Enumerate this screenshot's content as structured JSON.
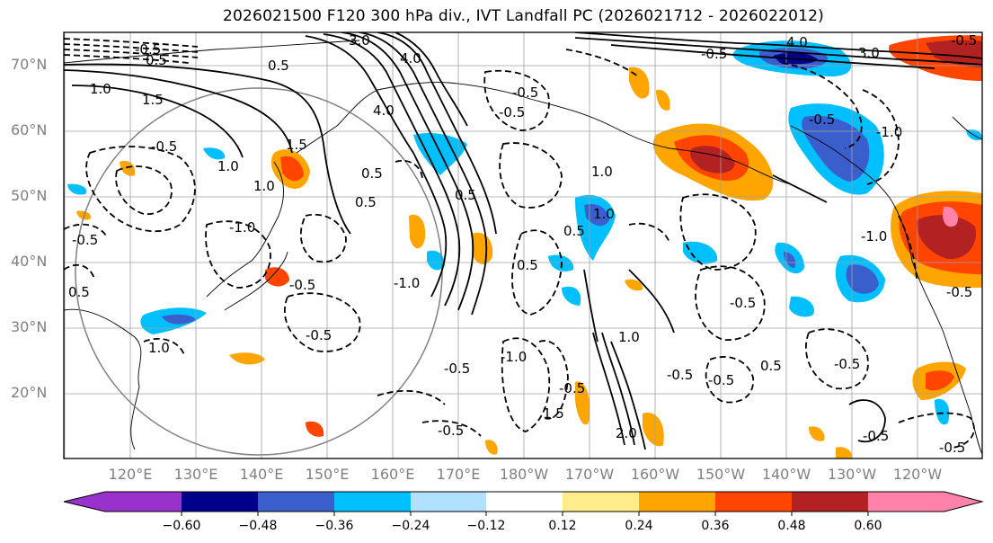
{
  "title": "2026021500 F120 300 hPa div., IVT Landfall PC (2026021712 - 2026022012)",
  "lat_labels": [
    "70°N",
    "60°N",
    "50°N",
    "40°N",
    "30°N",
    "20°N"
  ],
  "lon_labels": [
    "120°E",
    "130°E",
    "140°E",
    "150°E",
    "160°E",
    "170°E",
    "180°W",
    "170°W",
    "160°W",
    "150°W",
    "140°W",
    "130°W",
    "120°W"
  ],
  "colorbar": {
    "labels": [
      "−0.60",
      "−0.48",
      "−0.36",
      "−0.24",
      "−0.12",
      "0.12",
      "0.24",
      "0.36",
      "0.48",
      "0.60"
    ],
    "colors": [
      "#9932cc",
      "#00008b",
      "#3a5fcd",
      "#00bfff",
      "#b0e2ff",
      "#ffffff",
      "#ffec8b",
      "#ffa500",
      "#ff4500",
      "#b22222",
      "#ff82ab"
    ]
  },
  "contour_labels": [
    "3.0",
    "4.0",
    "0.5",
    "1.0",
    "1.5",
    "4.0",
    "3.0",
    "4.0",
    "-0.5",
    "1.0",
    "1.5",
    "-0.5",
    "-0.5",
    "1.0",
    "0.5",
    "-1.0",
    "-0.5",
    "0.5",
    "1.0",
    "-1.0",
    "0.5",
    "-0.5",
    "1.0",
    "-0.5",
    "0.5",
    "-0.5",
    "0.5",
    "1.0",
    "-1.0",
    "-0.5",
    "1.5",
    "2.0",
    "-0.5",
    "0.5",
    "-0.5",
    "-1.0",
    "-0.5",
    "-0.5",
    "-0.5",
    "1.0",
    "-1.0",
    "-0.5",
    "0.5",
    "-0.5",
    "-0.5",
    "-0.5",
    "0.5",
    "-0.5",
    "-0.5",
    "-0.5"
  ]
}
